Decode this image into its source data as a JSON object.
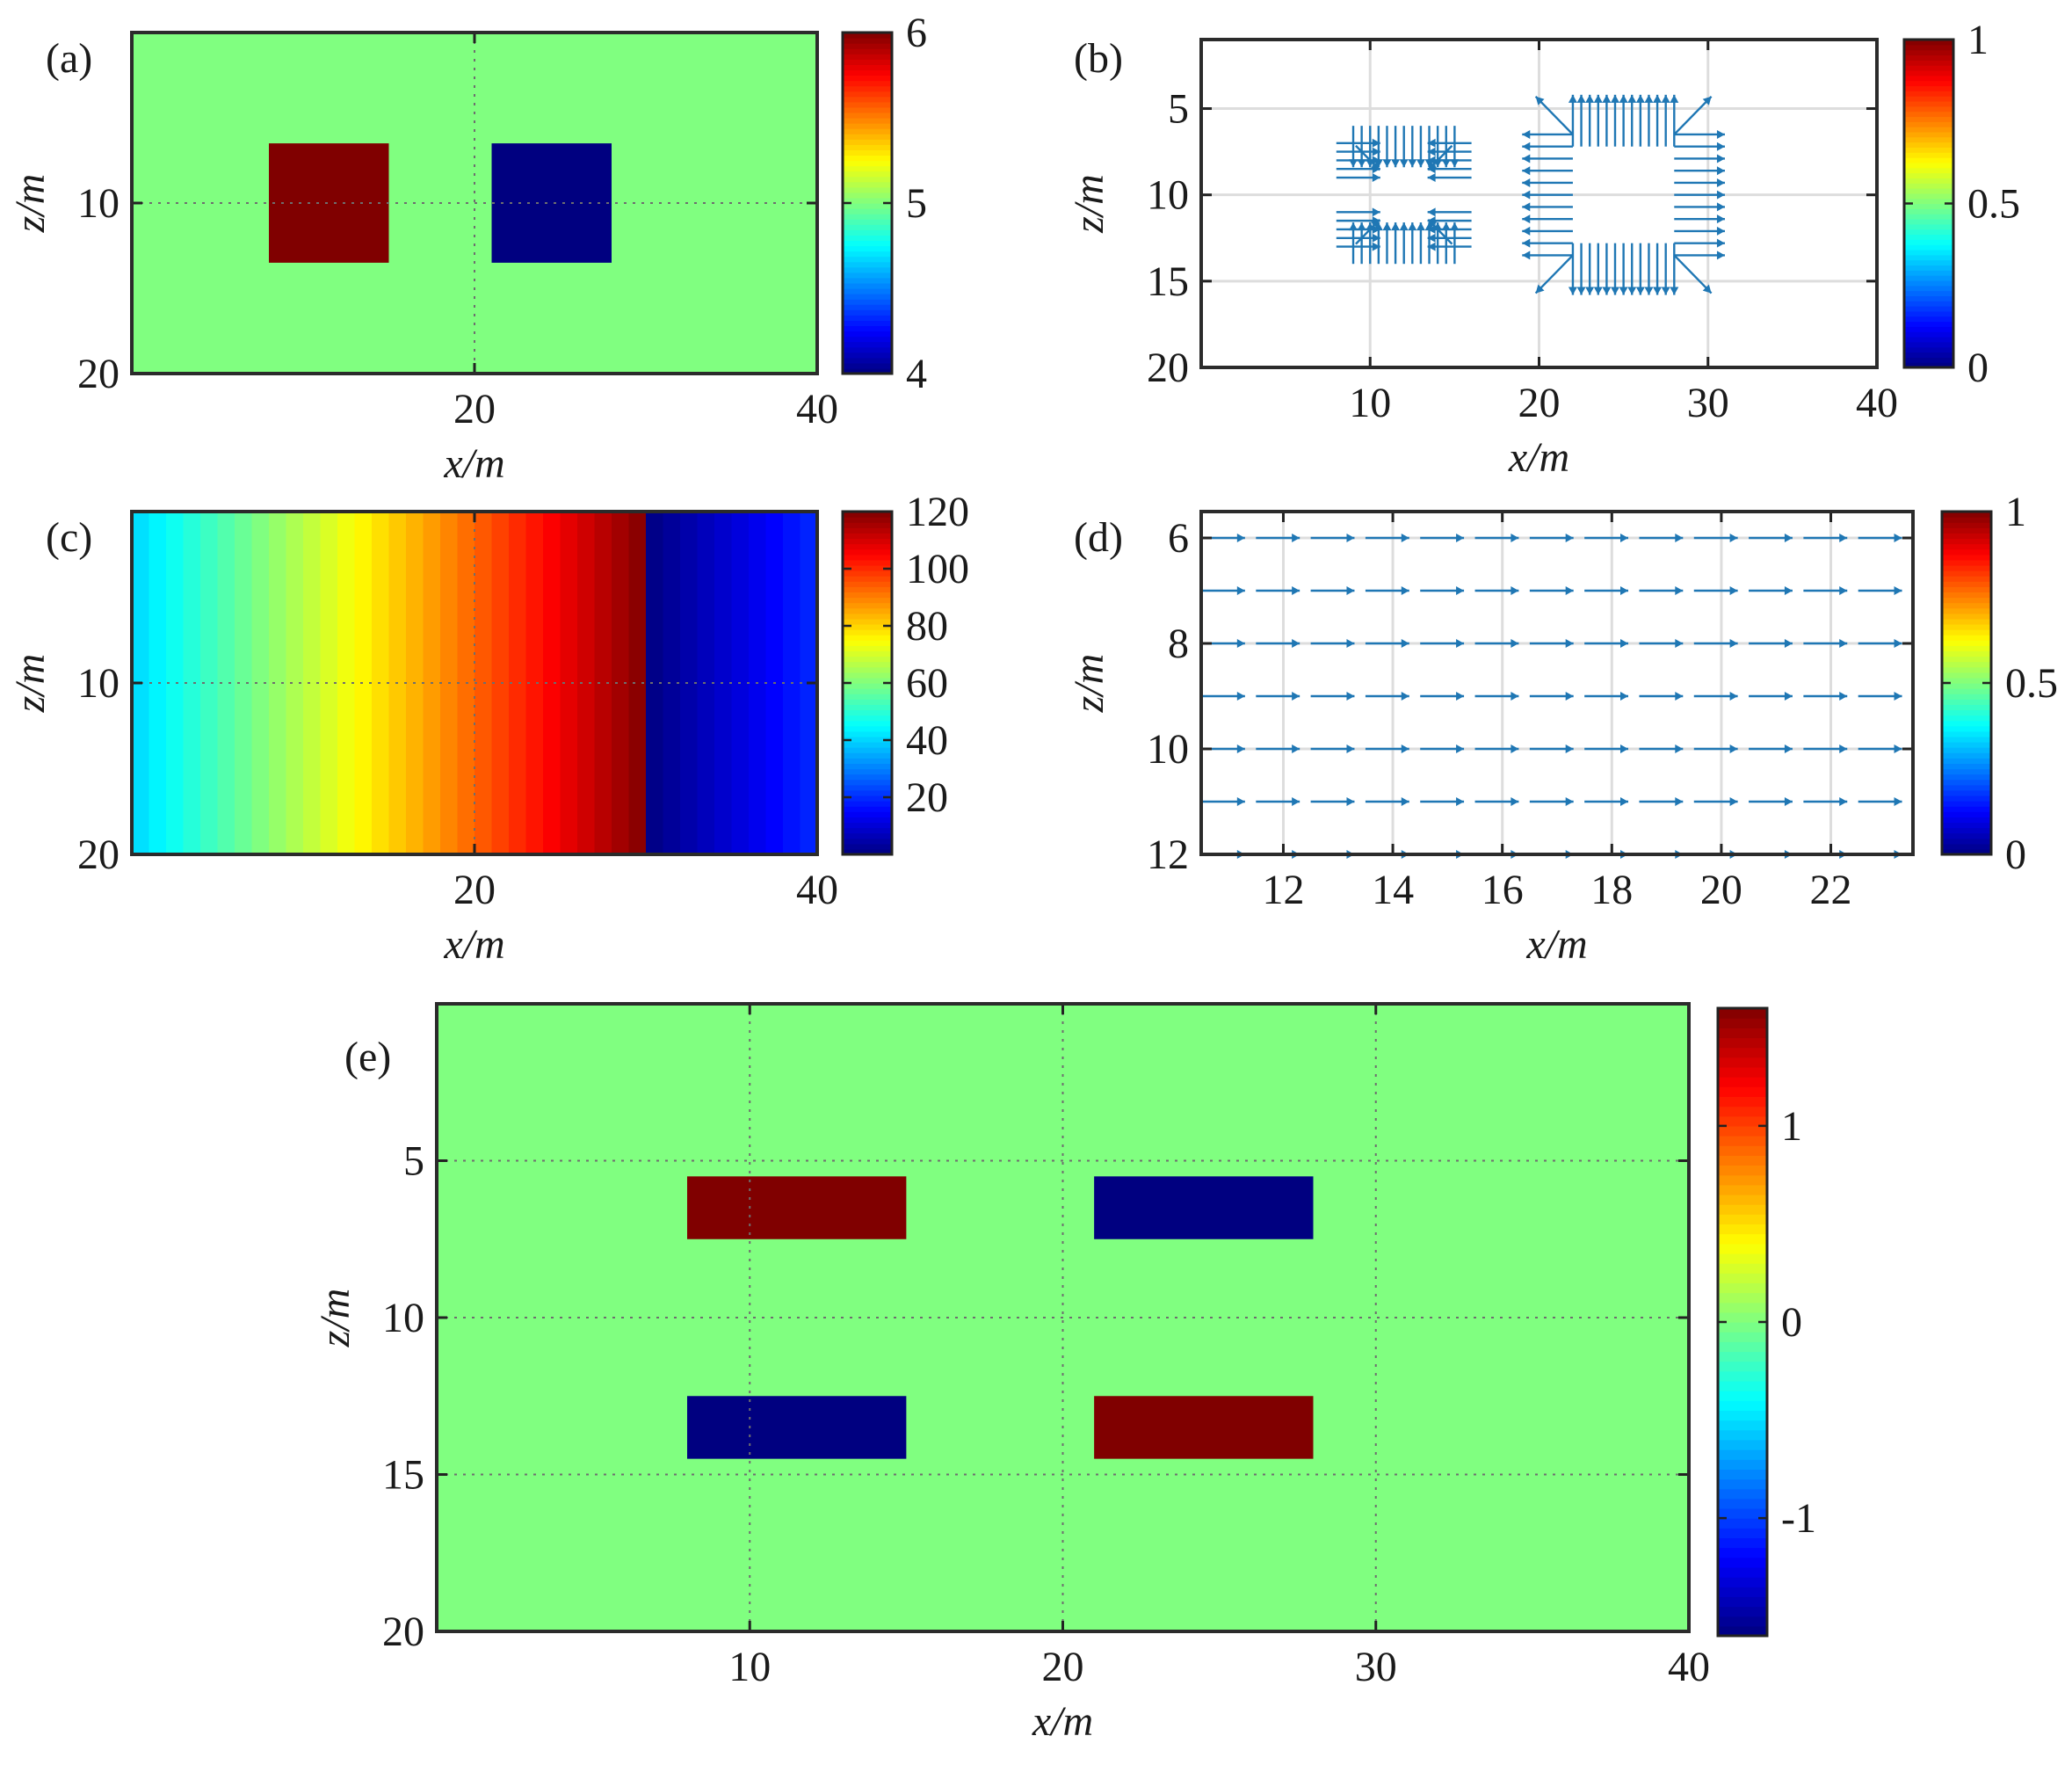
{
  "chart_data": [
    {
      "id": "a",
      "panel_label": "(a)",
      "type": "heatmap",
      "xlabel": "x/m",
      "ylabel": "z/m",
      "xlim": [
        0,
        40
      ],
      "ylim": [
        20,
        0
      ],
      "y_reversed": true,
      "xticks": [
        20,
        40
      ],
      "xtick_labels": [
        "20",
        "40"
      ],
      "yticks": [
        10,
        20
      ],
      "ytick_labels": [
        "10",
        "20"
      ],
      "grid": "dotted",
      "background_value": 5,
      "rectangles": [
        {
          "x0": 8,
          "x1": 15,
          "z0": 6.5,
          "z1": 13.5,
          "value": 6
        },
        {
          "x0": 21,
          "x1": 28,
          "z0": 6.5,
          "z1": 13.5,
          "value": 4
        }
      ],
      "colorbar": {
        "min": 4,
        "max": 6,
        "ticks": [
          4,
          5,
          6
        ],
        "tick_labels": [
          "4",
          "5",
          "6"
        ]
      }
    },
    {
      "id": "b",
      "panel_label": "(b)",
      "type": "quiver",
      "xlabel": "x/m",
      "ylabel": "z/m",
      "xlim": [
        0,
        40
      ],
      "ylim": [
        20,
        1
      ],
      "y_reversed": true,
      "xticks": [
        10,
        20,
        30,
        40
      ],
      "xtick_labels": [
        "10",
        "20",
        "30",
        "40"
      ],
      "yticks": [
        5,
        10,
        15,
        20
      ],
      "ytick_labels": [
        "5",
        "10",
        "15",
        "20"
      ],
      "grid": "solid",
      "arrow_color": "#1f77b4",
      "inward_square": {
        "x0": 8,
        "x1": 16,
        "z0": 6,
        "z1": 14
      },
      "outward_square": {
        "x0": 19,
        "x1": 31,
        "z0": 4,
        "z1": 16
      },
      "colorbar": {
        "min": 0,
        "max": 1,
        "ticks": [
          0,
          0.5,
          1
        ],
        "tick_labels": [
          "0",
          "0.5",
          "1"
        ]
      }
    },
    {
      "id": "c",
      "panel_label": "(c)",
      "type": "heatmap",
      "xlabel": "x/m",
      "ylabel": "z/m",
      "xlim": [
        0,
        40
      ],
      "ylim": [
        20,
        0
      ],
      "y_reversed": true,
      "xticks": [
        20,
        40
      ],
      "xtick_labels": [
        "20",
        "40"
      ],
      "yticks": [
        10,
        20
      ],
      "ytick_labels": [
        "10",
        "20"
      ],
      "grid": "dotted",
      "field": "linear ramp in x: value rises from 40 at x=0 to 120 at x=30, then 0 rising to 20 at x=40",
      "columns": {
        "count": 40,
        "ramp1_end_x": 30,
        "ramp1_from": 40,
        "ramp1_to": 120,
        "ramp2_from": 0,
        "ramp2_to": 20
      },
      "colorbar": {
        "min": 0,
        "max": 120,
        "ticks": [
          20,
          40,
          60,
          80,
          100,
          120
        ],
        "tick_labels": [
          "20",
          "40",
          "60",
          "80",
          "100",
          "120"
        ]
      }
    },
    {
      "id": "d",
      "panel_label": "(d)",
      "type": "quiver",
      "xlabel": "x/m",
      "ylabel": "z/m",
      "xlim": [
        10.5,
        23.5
      ],
      "ylim": [
        12,
        5.5
      ],
      "y_reversed": true,
      "xticks": [
        12,
        14,
        16,
        18,
        20,
        22
      ],
      "xtick_labels": [
        "12",
        "14",
        "16",
        "18",
        "20",
        "22"
      ],
      "yticks": [
        6,
        8,
        10,
        12
      ],
      "ytick_labels": [
        "6",
        "8",
        "10",
        "12"
      ],
      "grid": "solid",
      "arrow_color": "#1f77b4",
      "arrow_rows_z": [
        6,
        7,
        8,
        9,
        10,
        11,
        12
      ],
      "arrow_x_start": 10.5,
      "arrow_x_step": 1,
      "arrow_count": 13,
      "arrow_direction": "+x",
      "colorbar": {
        "min": 0,
        "max": 1,
        "ticks": [
          0,
          0.5,
          1
        ],
        "tick_labels": [
          "0",
          "0.5",
          "1"
        ]
      }
    },
    {
      "id": "e",
      "panel_label": "(e)",
      "type": "heatmap",
      "xlabel": "x/m",
      "ylabel": "z/m",
      "xlim": [
        0,
        40
      ],
      "ylim": [
        20,
        0
      ],
      "y_reversed": true,
      "xticks": [
        10,
        20,
        30,
        40
      ],
      "xtick_labels": [
        "10",
        "20",
        "30",
        "40"
      ],
      "yticks": [
        5,
        10,
        15,
        20
      ],
      "ytick_labels": [
        "5",
        "10",
        "15",
        "20"
      ],
      "grid": "dotted",
      "background_value": 0,
      "rectangles": [
        {
          "x0": 8,
          "x1": 15,
          "z0": 5.5,
          "z1": 7.5,
          "value": 1.6
        },
        {
          "x0": 21,
          "x1": 28,
          "z0": 5.5,
          "z1": 7.5,
          "value": -1.6
        },
        {
          "x0": 8,
          "x1": 15,
          "z0": 12.5,
          "z1": 14.5,
          "value": -1.6
        },
        {
          "x0": 21,
          "x1": 28,
          "z0": 12.5,
          "z1": 14.5,
          "value": 1.6
        }
      ],
      "colorbar": {
        "min": -1.6,
        "max": 1.6,
        "ticks": [
          -1,
          0,
          1
        ],
        "tick_labels": [
          "-1",
          "0",
          "1"
        ]
      }
    }
  ]
}
